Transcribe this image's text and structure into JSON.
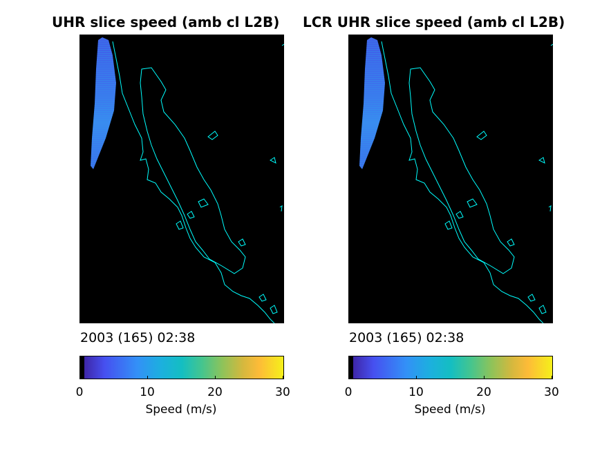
{
  "panels": [
    {
      "title": "UHR slice speed (amb cl L2B)",
      "timestamp": "2003 (165) 02:38",
      "colorbar": {
        "ticks": [
          "0",
          "10",
          "20",
          "30"
        ],
        "label": "Speed (m/s)"
      }
    },
    {
      "title": "LCR UHR slice speed (amb cl L2B)",
      "timestamp": "2003 (165) 02:38",
      "colorbar": {
        "ticks": [
          "0",
          "10",
          "20",
          "30"
        ],
        "label": "Speed (m/s)"
      }
    }
  ],
  "colors": {
    "coastline": "#00ffff",
    "map_background": "#000000",
    "swath_low": "#3f5ee8",
    "swath_high": "#3a88f0"
  },
  "colorbar_range": [
    0,
    30
  ]
}
